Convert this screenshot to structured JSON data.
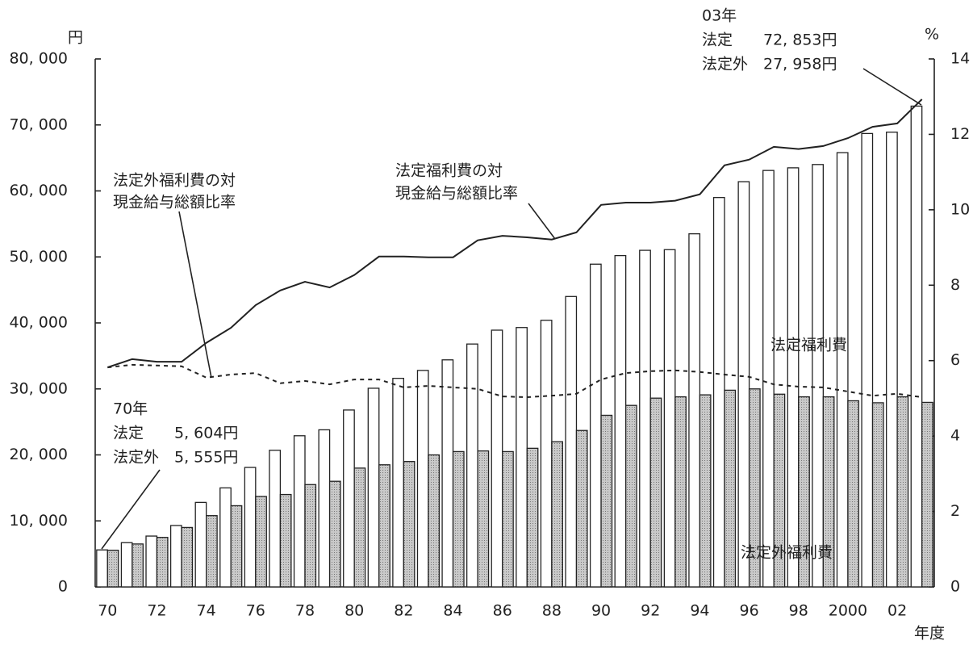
{
  "chart_data": {
    "type": "bar",
    "categories": [
      "70",
      null,
      "72",
      null,
      "74",
      null,
      "76",
      null,
      "78",
      null,
      "80",
      null,
      "82",
      null,
      "84",
      null,
      "86",
      null,
      "88",
      null,
      "90",
      null,
      "92",
      null,
      "94",
      null,
      "96",
      null,
      "98",
      null,
      "2000",
      null,
      "02",
      null
    ],
    "series": [
      {
        "name": "法定福利費",
        "color": "#ffffff",
        "values": [
          5604,
          6700,
          7700,
          9300,
          12800,
          15000,
          18100,
          20700,
          22900,
          23800,
          26800,
          30100,
          31600,
          32800,
          34400,
          36800,
          38900,
          39300,
          40400,
          44000,
          48900,
          50200,
          51000,
          51100,
          53500,
          59000,
          61400,
          63100,
          63500,
          64000,
          65800,
          68700,
          68900,
          72853
        ]
      },
      {
        "name": "法定外福利費",
        "color": "#c9c9c9",
        "values": [
          5555,
          6500,
          7500,
          9000,
          10800,
          12300,
          13700,
          14000,
          15500,
          16000,
          18000,
          18500,
          19000,
          20000,
          20500,
          20600,
          20500,
          21000,
          22000,
          23700,
          26000,
          27500,
          28600,
          28800,
          29100,
          29800,
          30000,
          29200,
          28800,
          28800,
          28200,
          27900,
          28800,
          27958
        ]
      },
      {
        "name": [
          "法定福利費の対",
          "現金給与総額比率"
        ],
        "type": "line",
        "axis": "y2",
        "color": "#222222",
        "line_style": "solid",
        "values": [
          5.82,
          6.04,
          5.97,
          5.97,
          6.47,
          6.87,
          7.47,
          7.86,
          8.09,
          7.94,
          8.27,
          8.76,
          8.76,
          8.74,
          8.74,
          9.19,
          9.31,
          9.27,
          9.21,
          9.4,
          10.13,
          10.19,
          10.19,
          10.24,
          10.41,
          11.18,
          11.33,
          11.67,
          11.61,
          11.69,
          11.9,
          12.2,
          12.29,
          12.93
        ]
      },
      {
        "name": [
          "法定外福利費の対",
          "現金給与総額比率"
        ],
        "type": "line",
        "axis": "y2",
        "color": "#222222",
        "line_style": "dashed",
        "values": [
          5.82,
          5.89,
          5.87,
          5.85,
          5.55,
          5.63,
          5.67,
          5.4,
          5.46,
          5.37,
          5.5,
          5.5,
          5.29,
          5.33,
          5.29,
          5.25,
          5.05,
          5.03,
          5.07,
          5.12,
          5.5,
          5.67,
          5.72,
          5.74,
          5.7,
          5.63,
          5.57,
          5.37,
          5.31,
          5.29,
          5.18,
          5.07,
          5.12,
          5.03
        ]
      }
    ],
    "y_unit": "円",
    "y2_unit": "%",
    "x_label": "年度",
    "ylim": [
      0,
      80000
    ],
    "yticks": [
      0,
      {
        "value": 10000,
        "label": "10, 000"
      },
      {
        "value": 20000,
        "label": "20, 000"
      },
      {
        "value": 30000,
        "label": "30, 000"
      },
      {
        "value": 40000,
        "label": "40, 000"
      },
      {
        "value": 50000,
        "label": "50, 000"
      },
      {
        "value": 60000,
        "label": "60, 000"
      },
      {
        "value": 70000,
        "label": "70, 000"
      },
      {
        "value": 80000,
        "label": "80, 000"
      }
    ],
    "y2lim": [
      0,
      14
    ],
    "y2ticks": [
      0,
      2,
      4,
      6,
      8,
      10,
      12,
      14
    ],
    "annotations": [
      {
        "lines": [
          "70年",
          "法定　　5, 604円",
          "法定外　5, 555円"
        ]
      },
      {
        "lines": [
          "03年",
          "法定　　72, 853円",
          "法定外　27, 958円"
        ]
      }
    ]
  }
}
